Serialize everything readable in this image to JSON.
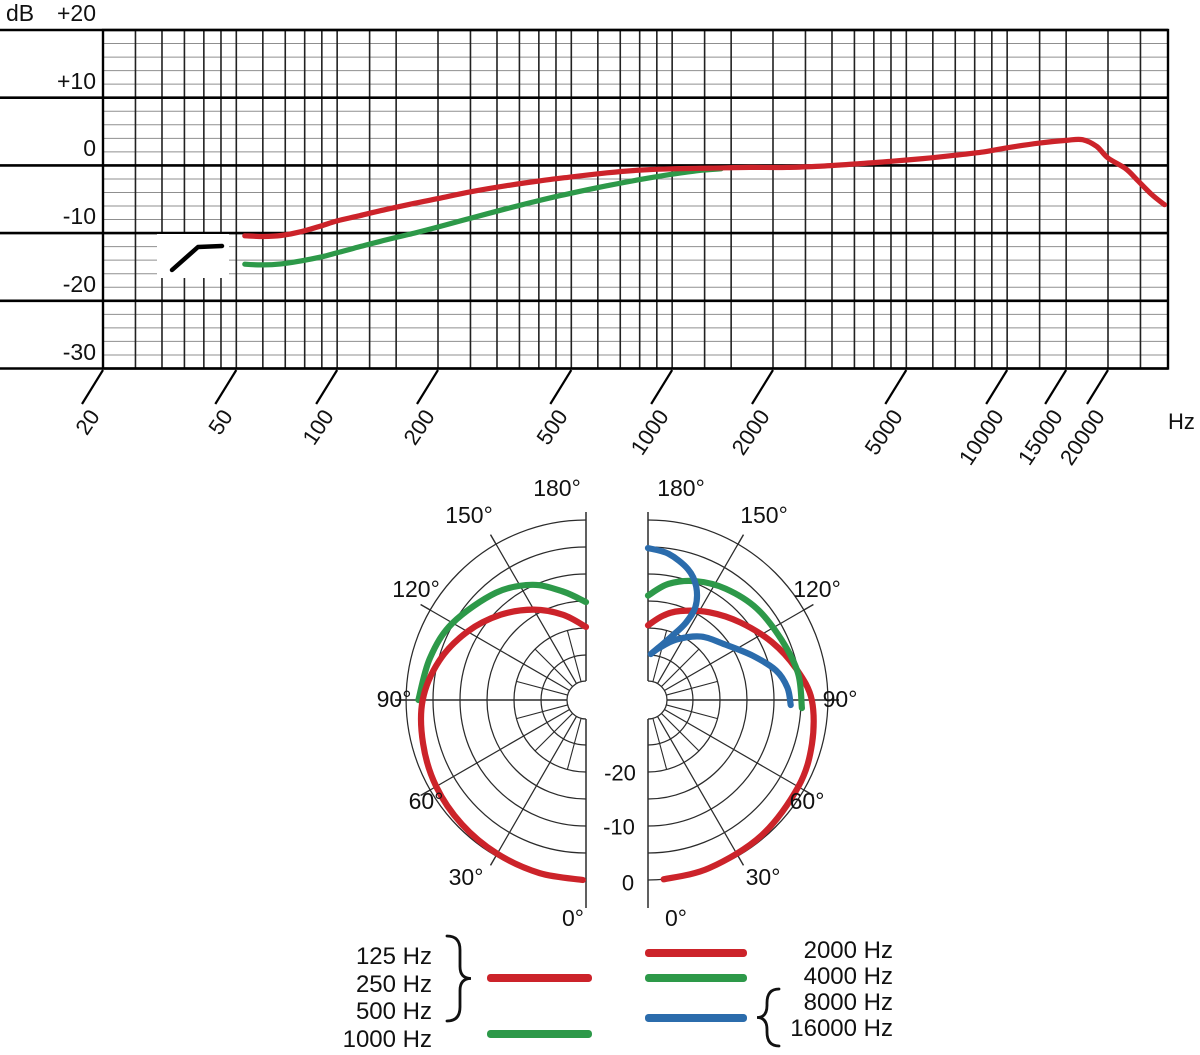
{
  "chart_data": [
    {
      "type": "line",
      "name": "frequency-response",
      "ylabel_unit": "dB",
      "xlabel_unit": "Hz",
      "x_scale": "log",
      "xlim": [
        20,
        30000
      ],
      "ylim": [
        -30,
        20
      ],
      "grid": "on",
      "y_ticks": [
        "+20",
        "+10",
        "0",
        "-10",
        "-20",
        "-30"
      ],
      "y_tick_values": [
        20,
        10,
        0,
        -10,
        -20,
        -30
      ],
      "x_ticks": [
        "20",
        "50",
        "100",
        "200",
        "500",
        "1000",
        "2000",
        "5000",
        "10000",
        "15000",
        "20000"
      ],
      "x_tick_values": [
        20,
        50,
        100,
        200,
        500,
        1000,
        2000,
        5000,
        10000,
        15000,
        20000
      ],
      "series": [
        {
          "name": "frequency-response-main",
          "color": "#cc232a",
          "points": [
            [
              53,
              -10.4
            ],
            [
              60,
              -10.5
            ],
            [
              68,
              -10.35
            ],
            [
              78,
              -9.8
            ],
            [
              90,
              -8.9
            ],
            [
              100,
              -8.2
            ],
            [
              115,
              -7.5
            ],
            [
              140,
              -6.5
            ],
            [
              170,
              -5.6
            ],
            [
              200,
              -4.9
            ],
            [
              250,
              -3.9
            ],
            [
              320,
              -3.0
            ],
            [
              400,
              -2.3
            ],
            [
              500,
              -1.7
            ],
            [
              640,
              -1.1
            ],
            [
              800,
              -0.7
            ],
            [
              1000,
              -0.5
            ],
            [
              1300,
              -0.4
            ],
            [
              1700,
              -0.3
            ],
            [
              2200,
              -0.3
            ],
            [
              2800,
              -0.1
            ],
            [
              3500,
              0.2
            ],
            [
              4500,
              0.6
            ],
            [
              5600,
              1.0
            ],
            [
              7000,
              1.5
            ],
            [
              8500,
              2.0
            ],
            [
              10000,
              2.6
            ],
            [
              12500,
              3.3
            ],
            [
              15000,
              3.7
            ],
            [
              16800,
              3.8
            ],
            [
              18500,
              2.8
            ],
            [
              20000,
              1.1
            ],
            [
              22600,
              -0.5
            ],
            [
              24500,
              -2.2
            ],
            [
              27000,
              -4.3
            ],
            [
              29500,
              -5.8
            ]
          ]
        },
        {
          "name": "frequency-response-bass-cut",
          "color": "#2d9949",
          "points": [
            [
              53,
              -14.6
            ],
            [
              60,
              -14.7
            ],
            [
              68,
              -14.55
            ],
            [
              78,
              -14.1
            ],
            [
              90,
              -13.5
            ],
            [
              100,
              -12.9
            ],
            [
              115,
              -12.1
            ],
            [
              140,
              -11.0
            ],
            [
              170,
              -10.0
            ],
            [
              200,
              -9.1
            ],
            [
              250,
              -7.8
            ],
            [
              320,
              -6.4
            ],
            [
              400,
              -5.2
            ],
            [
              500,
              -4.1
            ],
            [
              640,
              -3.0
            ],
            [
              800,
              -2.1
            ],
            [
              1000,
              -1.3
            ],
            [
              1200,
              -0.75
            ],
            [
              1400,
              -0.5
            ]
          ]
        }
      ],
      "annotations": [
        {
          "name": "bass-cut-filter-symbol",
          "type": "icon",
          "description_on_screen": "rising-slope filter symbol near 40 Hz / -15 dB"
        }
      ]
    },
    {
      "type": "polar",
      "name": "polar-patterns",
      "rings_db": [
        0,
        -5,
        -10,
        -15,
        -20,
        -25
      ],
      "ring_labels": [
        "-20",
        "-10",
        "0"
      ],
      "ring_label_values": [
        -20,
        -10,
        0
      ],
      "angle_labels": [
        "180°",
        "150°",
        "120°",
        "90°",
        "60°",
        "30°",
        "0°"
      ],
      "angle_values": [
        180,
        150,
        120,
        90,
        60,
        30,
        0
      ],
      "diagrams": [
        {
          "side": "left",
          "series": [
            {
              "name": "polar-1000Hz",
              "legend": "1000 Hz",
              "color": "#2d9949",
              "points_theta_db": [
                [
                  90,
                  -2.3
                ],
                [
                  105,
                  -3.4
                ],
                [
                  120,
                  -4.8
                ],
                [
                  140,
                  -7.4
                ],
                [
                  155,
                  -9.8
                ],
                [
                  168,
                  -12.8
                ],
                [
                  180,
                  -15.2
                ]
              ]
            },
            {
              "name": "polar-125-250-500Hz",
              "legend": "125 Hz / 250 Hz / 500 Hz",
              "color": "#cc232a",
              "points_theta_db": [
                [
                  1,
                  0
                ],
                [
                  15,
                  -0.15
                ],
                [
                  30,
                  -0.45
                ],
                [
                  45,
                  -0.8
                ],
                [
                  60,
                  -1.3
                ],
                [
                  75,
                  -2.1
                ],
                [
                  90,
                  -3.1
                ],
                [
                  105,
                  -5.2
                ],
                [
                  120,
                  -8.0
                ],
                [
                  135,
                  -11.0
                ],
                [
                  150,
                  -14.0
                ],
                [
                  165,
                  -17.0
                ],
                [
                  180,
                  -19.8
                ]
              ]
            }
          ]
        },
        {
          "side": "right",
          "series": [
            {
              "name": "polar-2000Hz",
              "legend": "2000 Hz",
              "color": "#cc232a",
              "points_theta_db": [
                [
                  5,
                  0
                ],
                [
                  20,
                  -0.2
                ],
                [
                  40,
                  -0.6
                ],
                [
                  60,
                  -1.2
                ],
                [
                  75,
                  -1.9
                ],
                [
                  90,
                  -3.0
                ],
                [
                  102,
                  -5.3
                ],
                [
                  115,
                  -8.0
                ],
                [
                  130,
                  -11.0
                ],
                [
                  145,
                  -13.5
                ],
                [
                  160,
                  -15.8
                ],
                [
                  170,
                  -17.5
                ],
                [
                  180,
                  -19.5
                ]
              ]
            },
            {
              "name": "polar-4000Hz",
              "legend": "4000 Hz",
              "color": "#2d9949",
              "points_theta_db": [
                [
                  87,
                  -4.8
                ],
                [
                  100,
                  -5.1
                ],
                [
                  114,
                  -6.2
                ],
                [
                  130,
                  -7.0
                ],
                [
                  145,
                  -8.2
                ],
                [
                  158,
                  -9.6
                ],
                [
                  170,
                  -11.5
                ],
                [
                  180,
                  -14.0
                ]
              ]
            },
            {
              "name": "polar-8000-16000Hz",
              "legend": "8000 Hz / 16000 Hz",
              "color": "#2b6cac",
              "points_theta_db": [
                [
                  180,
                  -5.2
                ],
                [
                  172,
                  -6.0
                ],
                [
                  163,
                  -8.0
                ],
                [
                  157,
                  -10.5
                ],
                [
                  153,
                  -14.0
                ],
                [
                  154,
                  -17.5
                ],
                [
                  159,
                  -20.5
                ],
                [
                  168,
                  -23.3
                ],
                [
                  176.5,
                  -24.8
                ],
                [
                  168,
                  -23.5
                ],
                [
                  155,
                  -21.0
                ],
                [
                  140,
                  -18.0
                ],
                [
                  126,
                  -15.8
                ],
                [
                  113,
                  -12.3
                ],
                [
                  103,
                  -9.0
                ],
                [
                  95,
                  -7.4
                ],
                [
                  88,
                  -6.9
                ]
              ]
            }
          ]
        }
      ]
    }
  ],
  "legend": {
    "low_group": {
      "labels": [
        "125 Hz",
        "250 Hz",
        "500 Hz"
      ],
      "color": "#cc232a"
    },
    "low_single": {
      "label": "1000 Hz",
      "color": "#2d9949"
    },
    "high_items": [
      {
        "label": "2000 Hz",
        "color": "#cc232a"
      },
      {
        "label": "4000 Hz",
        "color": "#2d9949"
      }
    ],
    "very_high_group": {
      "labels": [
        "8000 Hz",
        "16000 Hz"
      ],
      "color": "#2b6cac"
    }
  }
}
